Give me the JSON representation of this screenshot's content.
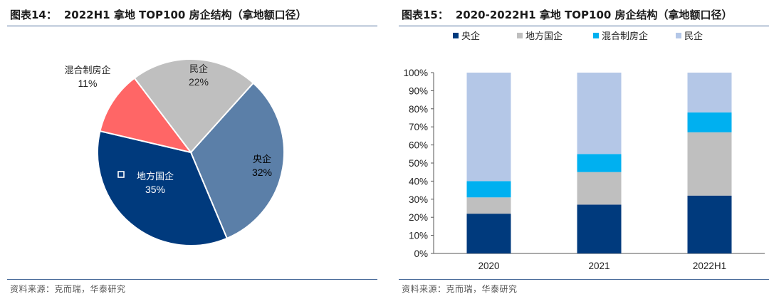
{
  "left": {
    "fig_no": "图表14：",
    "title": "2022H1 拿地 TOP100 房企结构（拿地额口径）",
    "source": "资料来源：克而瑞，华泰研究"
  },
  "right": {
    "fig_no": "图表15：",
    "title": "2020-2022H1 拿地 TOP100 房企结构（拿地额口径）",
    "source": "资料来源：克而瑞，华泰研究"
  },
  "colors": {
    "central_soe": "#003a7d",
    "local_soe": "#bfbfbf",
    "mixed": "#00b0f0",
    "private": "#b4c7e7",
    "pie_central": "#5b7fa8",
    "pie_local": "#003a7d",
    "pie_mixed": "#ff6666",
    "pie_private": "#bfbfbf"
  },
  "chart_data": [
    {
      "type": "pie",
      "title": "2022H1 拿地 TOP100 房企结构（拿地额口径）",
      "slices": [
        {
          "label": "央企",
          "value": 32,
          "pct_label": "32%",
          "color_key": "pie_central"
        },
        {
          "label": "地方国企",
          "value": 35,
          "pct_label": "35%",
          "color_key": "pie_local"
        },
        {
          "label": "混合制房企",
          "value": 11,
          "pct_label": "11%",
          "color_key": "pie_mixed"
        },
        {
          "label": "民企",
          "value": 22,
          "pct_label": "22%",
          "color_key": "pie_private"
        }
      ]
    },
    {
      "type": "bar",
      "stacked": true,
      "title": "2020-2022H1 拿地 TOP100 房企结构（拿地额口径）",
      "categories": [
        "2020",
        "2021",
        "2022H1"
      ],
      "series": [
        {
          "name": "央企",
          "values": [
            22,
            27,
            32
          ],
          "color_key": "central_soe"
        },
        {
          "name": "地方国企",
          "values": [
            9,
            18,
            35
          ],
          "color_key": "local_soe"
        },
        {
          "name": "混合制房企",
          "values": [
            9,
            10,
            11
          ],
          "color_key": "mixed"
        },
        {
          "name": "民企",
          "values": [
            60,
            45,
            22
          ],
          "color_key": "private"
        }
      ],
      "ylim": [
        0,
        100
      ],
      "yticks": [
        "0%",
        "10%",
        "20%",
        "30%",
        "40%",
        "50%",
        "60%",
        "70%",
        "80%",
        "90%",
        "100%"
      ],
      "legend": "top",
      "grid": false
    }
  ]
}
